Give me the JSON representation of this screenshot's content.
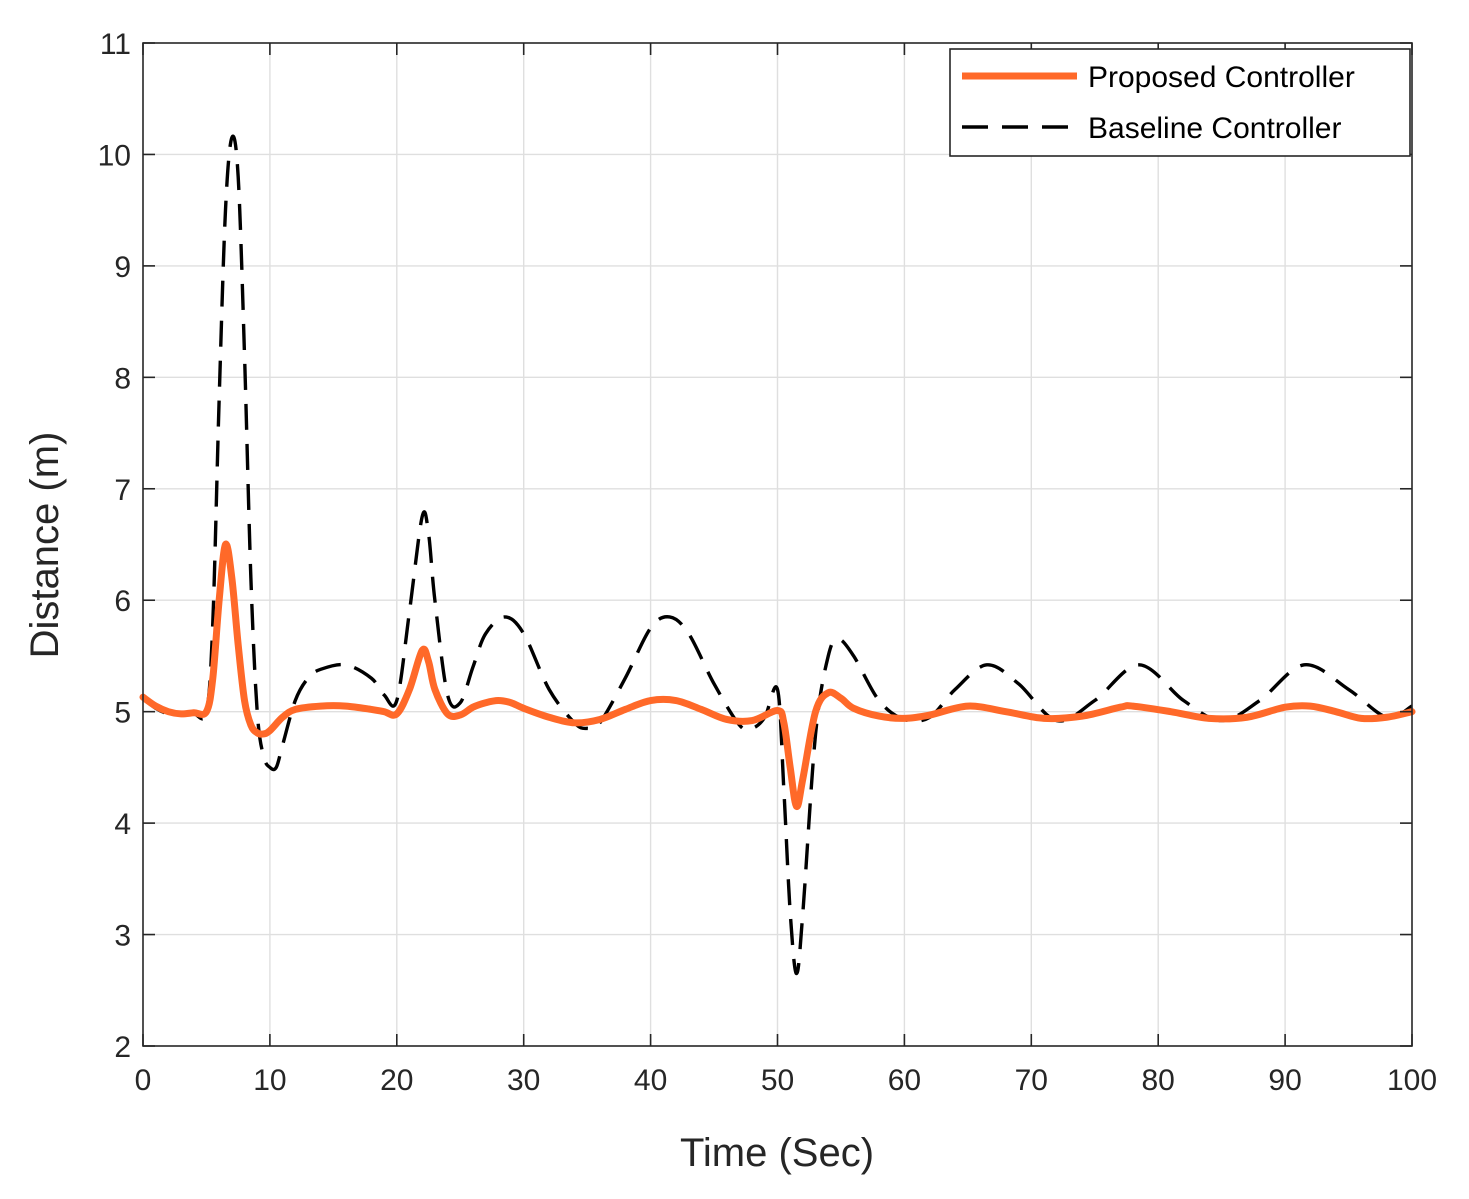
{
  "chart_data": {
    "type": "line",
    "title": "",
    "xlabel": "Time (Sec)",
    "ylabel": "Distance (m)",
    "xlim": [
      0,
      100
    ],
    "ylim": [
      2,
      11
    ],
    "xticks": [
      0,
      10,
      20,
      30,
      40,
      50,
      60,
      70,
      80,
      90,
      100
    ],
    "yticks": [
      2,
      3,
      4,
      5,
      6,
      7,
      8,
      9,
      10,
      11
    ],
    "grid": true,
    "legend_position": "top-right",
    "series": [
      {
        "name": "Proposed Controller",
        "color": "#ff6929",
        "style": "solid",
        "x": [
          0,
          1,
          2,
          3,
          4,
          5,
          5.5,
          6,
          6.5,
          7,
          7.5,
          8,
          8.5,
          9,
          9.5,
          10,
          11,
          12,
          14,
          16,
          18,
          19,
          20,
          21,
          22,
          22.5,
          23,
          24,
          25,
          26,
          27,
          28,
          29,
          30,
          32,
          34,
          36,
          38,
          40,
          42,
          44,
          46,
          48,
          50,
          50.5,
          51,
          51.5,
          52,
          53,
          54,
          55,
          56,
          58,
          60,
          62,
          65,
          68,
          71,
          74,
          77,
          78,
          81,
          84,
          87,
          90,
          92,
          94,
          96,
          98,
          100
        ],
        "values": [
          5.13,
          5.05,
          5.0,
          4.98,
          4.99,
          5.0,
          5.3,
          6.0,
          6.5,
          6.2,
          5.6,
          5.1,
          4.88,
          4.81,
          4.8,
          4.83,
          4.95,
          5.02,
          5.05,
          5.05,
          5.02,
          5.0,
          4.98,
          5.2,
          5.55,
          5.45,
          5.2,
          4.98,
          4.97,
          5.04,
          5.08,
          5.1,
          5.08,
          5.03,
          4.95,
          4.9,
          4.93,
          5.02,
          5.1,
          5.1,
          5.02,
          4.93,
          4.92,
          5.01,
          4.9,
          4.5,
          4.15,
          4.4,
          5.0,
          5.17,
          5.12,
          5.03,
          4.96,
          4.94,
          4.97,
          5.05,
          5.0,
          4.94,
          4.96,
          5.04,
          5.05,
          5.0,
          4.94,
          4.95,
          5.04,
          5.05,
          5.0,
          4.94,
          4.95,
          5.0
        ]
      },
      {
        "name": "Baseline Controller",
        "color": "#000000",
        "style": "dashed",
        "x": [
          0,
          1,
          2,
          3,
          4,
          5,
          5.5,
          6,
          6.5,
          7,
          7.5,
          8,
          8.5,
          9,
          9.5,
          10,
          10.5,
          11,
          12,
          13,
          14,
          16,
          18,
          19,
          20,
          21,
          22,
          22.5,
          23,
          24,
          25,
          26,
          27,
          28.5,
          30,
          32,
          34,
          35,
          36,
          38,
          40,
          41.5,
          43,
          45,
          47,
          48,
          49,
          50,
          50.5,
          51,
          51.5,
          52,
          53,
          54,
          54.8,
          56,
          58,
          60,
          62,
          64,
          66.5,
          69,
          72,
          75,
          78.5,
          82,
          85,
          88,
          91.5,
          95,
          98,
          100
        ],
        "values": [
          5.12,
          5.03,
          4.98,
          4.97,
          4.98,
          5.0,
          5.8,
          7.8,
          9.5,
          10.15,
          9.8,
          8.2,
          6.2,
          5.0,
          4.6,
          4.5,
          4.5,
          4.7,
          5.1,
          5.3,
          5.38,
          5.42,
          5.3,
          5.15,
          5.1,
          5.9,
          6.75,
          6.6,
          6.0,
          5.15,
          5.08,
          5.4,
          5.7,
          5.85,
          5.7,
          5.2,
          4.9,
          4.85,
          4.9,
          5.3,
          5.75,
          5.85,
          5.7,
          5.25,
          4.88,
          4.85,
          4.95,
          5.2,
          4.3,
          3.2,
          2.65,
          3.2,
          4.8,
          5.5,
          5.65,
          5.5,
          5.1,
          4.93,
          4.95,
          5.2,
          5.42,
          5.25,
          4.92,
          5.1,
          5.42,
          5.1,
          4.92,
          5.1,
          5.42,
          5.2,
          4.95,
          5.05
        ]
      }
    ]
  }
}
